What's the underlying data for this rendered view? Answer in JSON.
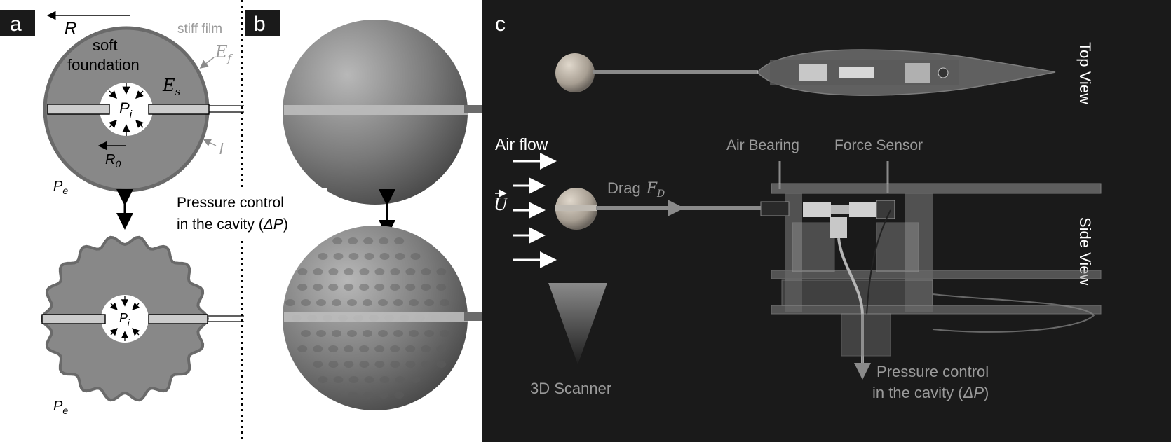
{
  "panel_a": {
    "label": "a",
    "top_label_R": "R",
    "stiff_film": "stiff film",
    "soft": "soft",
    "foundation": "foundation",
    "E_f_base": "E",
    "E_f_sub": "f",
    "E_s_base": "E",
    "E_s_sub": "s",
    "Pi_base": "P",
    "Pi_sub": "i",
    "R0_base": "R",
    "R0_sub": "0",
    "thickness": "l",
    "Pe_top_base": "P",
    "Pe_top_sub": "e",
    "Pe_bottom_base": "P",
    "Pe_bottom_sub": "e",
    "Pi2_base": "P",
    "Pi2_sub": "i"
  },
  "panel_b": {
    "label": "b"
  },
  "pressure_label_left": {
    "line1": "Pressure control",
    "line2_prefix": "in the cavity (",
    "line2_symbol": "ΔP",
    "line2_suffix": ")"
  },
  "panel_c": {
    "label": "c",
    "top_view": "Top View",
    "side_view": "Side View",
    "air_flow": "Air flow",
    "air_bearing": "Air Bearing",
    "force_sensor": "Force Sensor",
    "drag_word": "Drag",
    "drag_symbol_base": "F",
    "drag_symbol_sub": "D",
    "velocity_symbol": "U",
    "scanner": "3D Scanner",
    "pressure_line1": "Pressure control",
    "pressure_line2_prefix": "in the cavity (",
    "pressure_line2_symbol": "ΔP",
    "pressure_line2_suffix": ")"
  },
  "colors": {
    "panel_bg_light": "#ffffff",
    "panel_bg_dark": "#1a1a1a",
    "foundation_gray": "#888888",
    "film_gray": "#6f6f6f",
    "label_gray": "#9a9a9a",
    "label_box": "#1a1a1a"
  }
}
